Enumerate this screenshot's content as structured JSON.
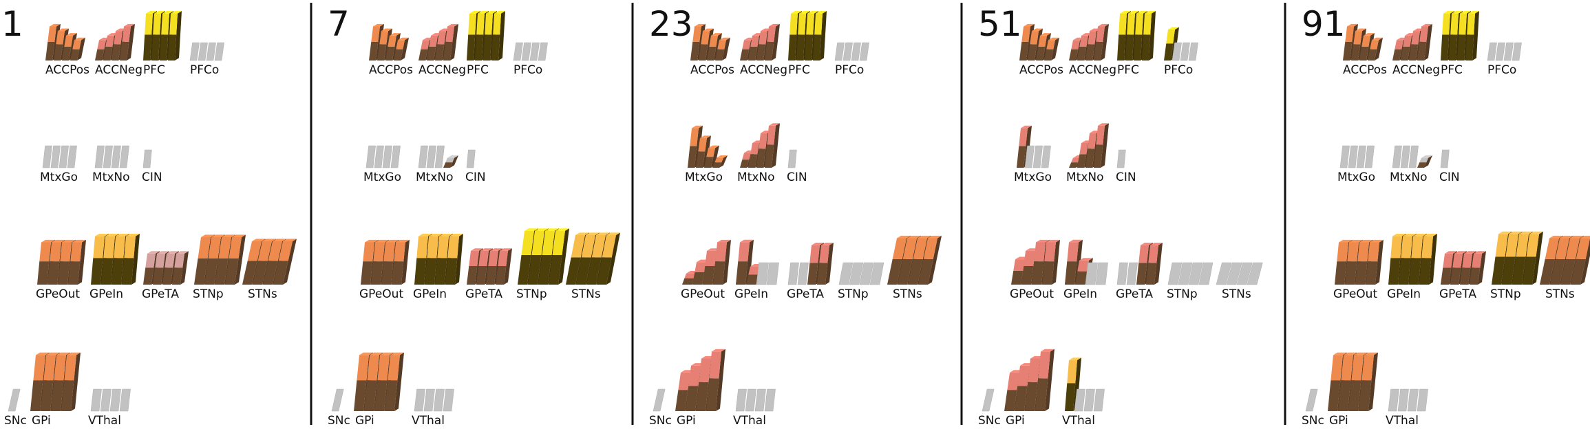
{
  "title": "",
  "colors": {
    "off": "#c2c2c2",
    "brown": "#6a4a2e",
    "olive": "#4d3f0a",
    "orange": "#ee8a4e",
    "amber": "#f8bc4a",
    "yellow": "#f4e020",
    "salmon": "#e67f74",
    "pink": "#d4a19e",
    "divider": "#111111"
  },
  "frames": [
    {
      "number": "1",
      "groups": [
        {
          "label": "ACCPos",
          "color": "orange",
          "levels": [
            0.75,
            0.65,
            0.55,
            0.45
          ]
        },
        {
          "label": "ACCNeg",
          "color": "salmon",
          "levels": [
            0.45,
            0.55,
            0.65,
            0.75
          ]
        },
        {
          "label": "PFC",
          "color": "yellow",
          "levels": [
            0.95,
            0.95,
            0.95,
            0.95
          ]
        },
        {
          "label": "PFCo",
          "color": "off",
          "levels": [
            0,
            0,
            0,
            0
          ]
        },
        {
          "label": "MtxGo",
          "color": "off",
          "levels": [
            0,
            0,
            0,
            0
          ]
        },
        {
          "label": "MtxNo",
          "color": "off",
          "levels": [
            0,
            0,
            0,
            0
          ]
        },
        {
          "label": "CIN",
          "color": "off",
          "levels": [
            0
          ]
        },
        {
          "label": "GPeOut",
          "color": "orange",
          "levels": [
            0.75,
            0.75,
            0.75,
            0.75
          ]
        },
        {
          "label": "GPeIn",
          "color": "amber",
          "levels": [
            0.8,
            0.8,
            0.8,
            0.8
          ]
        },
        {
          "label": "GPeTA",
          "color": "pink",
          "levels": [
            0.55,
            0.55,
            0.55,
            0.55
          ]
        },
        {
          "label": "STNp",
          "color": "orange",
          "levels": [
            0.75,
            0.75,
            0.75,
            0.75
          ]
        },
        {
          "label": "STNs",
          "color": "orange",
          "levels": [
            0.7,
            0.7,
            0.7,
            0.7
          ]
        },
        {
          "label": "SNc",
          "color": "off",
          "levels": [
            0
          ]
        },
        {
          "label": "GPi",
          "color": "orange",
          "levels": [
            0.8,
            0.8,
            0.8,
            0.8
          ]
        },
        {
          "label": "VThal",
          "color": "off",
          "levels": [
            0,
            0,
            0,
            0
          ]
        }
      ]
    },
    {
      "number": "7",
      "groups": [
        {
          "label": "ACCPos",
          "color": "orange",
          "levels": [
            0.75,
            0.65,
            0.55,
            0.45
          ]
        },
        {
          "label": "ACCNeg",
          "color": "salmon",
          "levels": [
            0.45,
            0.55,
            0.65,
            0.75
          ]
        },
        {
          "label": "PFC",
          "color": "yellow",
          "levels": [
            0.95,
            0.95,
            0.95,
            0.95
          ]
        },
        {
          "label": "PFCo",
          "color": "off",
          "levels": [
            0,
            0,
            0,
            0
          ]
        },
        {
          "label": "MtxGo",
          "color": "off",
          "levels": [
            0,
            0,
            0,
            0
          ]
        },
        {
          "label": "MtxNo",
          "color": "off",
          "levels": [
            0,
            0,
            0,
            0.2
          ]
        },
        {
          "label": "CIN",
          "color": "off",
          "levels": [
            0
          ]
        },
        {
          "label": "GPeOut",
          "color": "orange",
          "levels": [
            0.75,
            0.75,
            0.75,
            0.75
          ]
        },
        {
          "label": "GPeIn",
          "color": "amber",
          "levels": [
            0.8,
            0.8,
            0.8,
            0.8
          ]
        },
        {
          "label": "GPeTA",
          "color": "salmon",
          "levels": [
            0.6,
            0.6,
            0.6,
            0.6
          ]
        },
        {
          "label": "STNp",
          "color": "yellow",
          "levels": [
            0.85,
            0.85,
            0.85,
            0.85
          ]
        },
        {
          "label": "STNs",
          "color": "amber",
          "levels": [
            0.8,
            0.8,
            0.8,
            0.8
          ]
        },
        {
          "label": "SNc",
          "color": "off",
          "levels": [
            0
          ]
        },
        {
          "label": "GPi",
          "color": "orange",
          "levels": [
            0.8,
            0.8,
            0.8,
            0.8
          ]
        },
        {
          "label": "VThal",
          "color": "off",
          "levels": [
            0,
            0,
            0,
            0
          ]
        }
      ]
    },
    {
      "number": "23",
      "groups": [
        {
          "label": "ACCPos",
          "color": "orange",
          "levels": [
            0.75,
            0.65,
            0.55,
            0.45
          ]
        },
        {
          "label": "ACCNeg",
          "color": "salmon",
          "levels": [
            0.45,
            0.55,
            0.65,
            0.75
          ]
        },
        {
          "label": "PFC",
          "color": "yellow",
          "levels": [
            0.95,
            0.95,
            0.95,
            0.95
          ]
        },
        {
          "label": "PFCo",
          "color": "off",
          "levels": [
            0,
            0,
            0,
            0
          ]
        },
        {
          "label": "MtxGo",
          "color": "orange",
          "levels": [
            0.8,
            0.6,
            0.4,
            0.2
          ]
        },
        {
          "label": "MtxNo",
          "color": "salmon",
          "levels": [
            0.3,
            0.5,
            0.7,
            0.85
          ]
        },
        {
          "label": "CIN",
          "color": "off",
          "levels": [
            0
          ]
        },
        {
          "label": "GPeOut",
          "color": "salmon",
          "levels": [
            0.2,
            0.4,
            0.6,
            0.75
          ]
        },
        {
          "label": "GPeIn",
          "color": "salmon",
          "levels": [
            0.7,
            0.3,
            0,
            0
          ]
        },
        {
          "label": "GPeTA",
          "color": "salmon",
          "levels": [
            0,
            0,
            0.7,
            0.7
          ]
        },
        {
          "label": "STNp",
          "color": "off",
          "levels": [
            0,
            0,
            0,
            0
          ]
        },
        {
          "label": "STNs",
          "color": "orange",
          "levels": [
            0.75,
            0.75,
            0.75,
            0.75
          ]
        },
        {
          "label": "SNc",
          "color": "off",
          "levels": [
            0
          ]
        },
        {
          "label": "GPi",
          "color": "salmon",
          "levels": [
            0.55,
            0.65,
            0.75,
            0.85
          ]
        },
        {
          "label": "VThal",
          "color": "off",
          "levels": [
            0,
            0,
            0,
            0
          ]
        }
      ]
    },
    {
      "number": "51",
      "groups": [
        {
          "label": "ACCPos",
          "color": "orange",
          "levels": [
            0.75,
            0.65,
            0.55,
            0.45
          ]
        },
        {
          "label": "ACCNeg",
          "color": "salmon",
          "levels": [
            0.45,
            0.55,
            0.65,
            0.75
          ]
        },
        {
          "label": "PFC",
          "color": "yellow",
          "levels": [
            0.95,
            0.95,
            0.95,
            0.95
          ]
        },
        {
          "label": "PFCo",
          "color": "yellow",
          "levels": [
            0.75,
            0,
            0,
            0
          ]
        },
        {
          "label": "MtxGo",
          "color": "salmon",
          "levels": [
            0.8,
            0,
            0,
            0
          ]
        },
        {
          "label": "MtxNo",
          "color": "salmon",
          "levels": [
            0.2,
            0.5,
            0.7,
            0.85
          ]
        },
        {
          "label": "CIN",
          "color": "off",
          "levels": [
            0
          ]
        },
        {
          "label": "GPeOut",
          "color": "salmon",
          "levels": [
            0.45,
            0.6,
            0.75,
            0.75
          ]
        },
        {
          "label": "GPeIn",
          "color": "salmon",
          "levels": [
            0.7,
            0.4,
            0,
            0
          ]
        },
        {
          "label": "GPeTA",
          "color": "salmon",
          "levels": [
            0,
            0,
            0.7,
            0.7
          ]
        },
        {
          "label": "STNp",
          "color": "off",
          "levels": [
            0,
            0,
            0,
            0
          ]
        },
        {
          "label": "STNs",
          "color": "off",
          "levels": [
            0,
            0,
            0,
            0
          ]
        },
        {
          "label": "SNc",
          "color": "off",
          "levels": [
            0
          ]
        },
        {
          "label": "GPi",
          "color": "salmon",
          "levels": [
            0.55,
            0.65,
            0.75,
            0.85
          ]
        },
        {
          "label": "VThal",
          "color": "amber",
          "levels": [
            0.95,
            0,
            0,
            0
          ]
        }
      ]
    },
    {
      "number": "91",
      "groups": [
        {
          "label": "ACCPos",
          "color": "orange",
          "levels": [
            0.75,
            0.65,
            0.55,
            0.45
          ]
        },
        {
          "label": "ACCNeg",
          "color": "salmon",
          "levels": [
            0.45,
            0.55,
            0.65,
            0.75
          ]
        },
        {
          "label": "PFC",
          "color": "yellow",
          "levels": [
            0.95,
            0.95,
            0.95,
            0.95
          ]
        },
        {
          "label": "PFCo",
          "color": "off",
          "levels": [
            0,
            0,
            0,
            0
          ]
        },
        {
          "label": "MtxGo",
          "color": "off",
          "levels": [
            0,
            0,
            0,
            0
          ]
        },
        {
          "label": "MtxNo",
          "color": "off",
          "levels": [
            0,
            0,
            0,
            0.2
          ]
        },
        {
          "label": "CIN",
          "color": "off",
          "levels": [
            0
          ]
        },
        {
          "label": "GPeOut",
          "color": "orange",
          "levels": [
            0.75,
            0.75,
            0.75,
            0.75
          ]
        },
        {
          "label": "GPeIn",
          "color": "amber",
          "levels": [
            0.8,
            0.8,
            0.8,
            0.8
          ]
        },
        {
          "label": "GPeTA",
          "color": "salmon",
          "levels": [
            0.55,
            0.55,
            0.55,
            0.55
          ]
        },
        {
          "label": "STNp",
          "color": "amber",
          "levels": [
            0.8,
            0.8,
            0.8,
            0.8
          ]
        },
        {
          "label": "STNs",
          "color": "orange",
          "levels": [
            0.75,
            0.75,
            0.75,
            0.75
          ]
        },
        {
          "label": "SNc",
          "color": "off",
          "levels": [
            0
          ]
        },
        {
          "label": "GPi",
          "color": "orange",
          "levels": [
            0.8,
            0.8,
            0.8,
            0.8
          ]
        },
        {
          "label": "VThal",
          "color": "off",
          "levels": [
            0,
            0,
            0,
            0
          ]
        }
      ]
    }
  ]
}
